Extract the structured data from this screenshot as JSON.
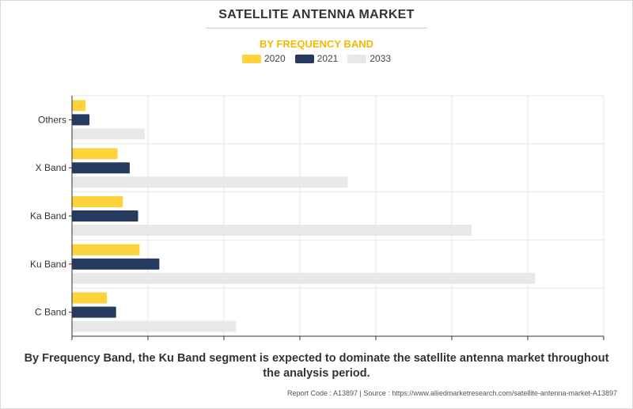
{
  "title": "SATELLITE ANTENNA MARKET",
  "subtitle": "BY FREQUENCY BAND",
  "caption_line1": "By Frequency Band, the Ku Band segment is expected to dominate the satellite antenna market throughout",
  "caption_line2": "the analysis period.",
  "footer": "Report Code : A13897  |  Source : https://www.alliedmarketresearch.com/satellite-antenna-market-A13897",
  "colors": {
    "2020": "#fdd43c",
    "2021": "#253a5e",
    "2033": "#e8e8e8"
  },
  "chart_data": {
    "type": "bar",
    "orientation": "horizontal",
    "categories": [
      "Others",
      "X Band",
      "Ka Band",
      "Ku Band",
      "C Band"
    ],
    "series": [
      {
        "name": "2020",
        "values": [
          0.18,
          0.6,
          0.67,
          0.89,
          0.46
        ]
      },
      {
        "name": "2021",
        "values": [
          0.23,
          0.76,
          0.87,
          1.15,
          0.58
        ]
      },
      {
        "name": "2033",
        "values": [
          0.96,
          3.63,
          5.26,
          6.1,
          2.16
        ]
      }
    ],
    "xlim": [
      0,
      7
    ],
    "x_tick_values": [
      0,
      1,
      2,
      3,
      4,
      5,
      6,
      7
    ],
    "x_tick_labels_shown": false,
    "grid": true,
    "legend": "top-center"
  }
}
